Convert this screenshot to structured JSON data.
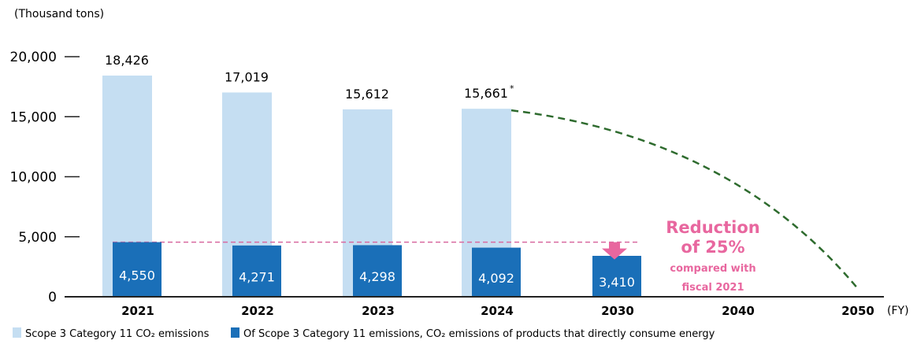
{
  "chart_data": {
    "type": "bar",
    "unit_label": "(Thousand tons)",
    "x_unit": "(FY)",
    "categories": [
      "2021",
      "2022",
      "2023",
      "2024",
      "2030",
      "2040",
      "2050"
    ],
    "ylim": [
      0,
      20000
    ],
    "y_ticks": [
      0,
      5000,
      10000,
      15000,
      20000
    ],
    "y_tick_labels": [
      "0",
      "5,000",
      "10,000",
      "15,000",
      "20,000"
    ],
    "series": [
      {
        "name": "Scope 3 Category 11 CO₂ emissions",
        "color": "#c5def2",
        "values": [
          18426,
          17019,
          15612,
          15661,
          null,
          null,
          null
        ],
        "labels": [
          "18,426",
          "17,019",
          "15,612",
          "15,661",
          "",
          "",
          ""
        ]
      },
      {
        "name": "Of Scope 3 Category 11 emissions, CO₂ emissions of products that directly consume energy",
        "color": "#1a6fb8",
        "values": [
          4550,
          4271,
          4298,
          4092,
          3410,
          null,
          null
        ],
        "labels": [
          "4,550",
          "4,271",
          "4,298",
          "4,092",
          "3,410",
          "",
          ""
        ]
      }
    ],
    "footnote_mark": "*",
    "reference_line": {
      "value": 4550,
      "color": "#d86aa0"
    },
    "trajectory": {
      "from": [
        "2024",
        15661
      ],
      "to": [
        "2050",
        0
      ],
      "color": "#2e6b2e",
      "style": "dashed"
    },
    "annotation": {
      "lines": [
        "Reduction",
        "of 25%",
        "compared with",
        "fiscal 2021"
      ],
      "color": "#e8679f"
    },
    "legend_position": "bottom-left"
  }
}
